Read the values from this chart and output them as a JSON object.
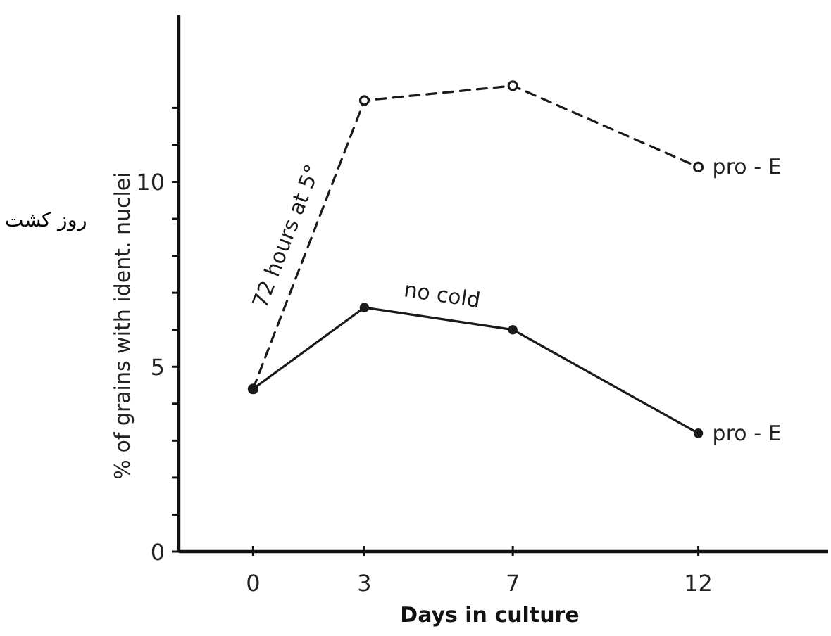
{
  "chart_data": {
    "type": "line",
    "xlabel": "Days in culture",
    "ylabel": "% of grains with ident. nuclei",
    "x": [
      0,
      3,
      7,
      12
    ],
    "series": [
      {
        "name": "72 hours at 5°",
        "color": "#1a1a1a",
        "line_style": "dashed",
        "values": [
          4.4,
          12.2,
          12.6,
          10.4
        ]
      },
      {
        "name": "no cold",
        "color": "#1a1a1a",
        "line_style": "solid",
        "values": [
          4.4,
          6.6,
          6.0,
          3.2
        ]
      }
    ],
    "xlim": [
      -2,
      15.5
    ],
    "xticks": [
      0,
      3,
      7,
      12
    ],
    "ylim": [
      0,
      14.5
    ],
    "yticks": [
      0,
      {
        "value": 1,
        "label": null
      },
      {
        "value": 2,
        "label": null
      },
      {
        "value": 3,
        "label": null
      },
      {
        "value": 4,
        "label": null
      },
      5,
      {
        "value": 6,
        "label": null
      },
      {
        "value": 7,
        "label": null
      },
      {
        "value": 8,
        "label": null
      },
      {
        "value": 9,
        "label": null
      },
      10,
      {
        "value": 11,
        "label": null
      },
      {
        "value": 12,
        "label": null
      }
    ],
    "marker": "circle",
    "grid": false,
    "annotations": [
      {
        "text": "pro - E",
        "x": 12,
        "y": 10.4
      },
      {
        "text": "pro - E",
        "x": 12,
        "y": 3.2
      },
      "روز کشت"
    ]
  }
}
